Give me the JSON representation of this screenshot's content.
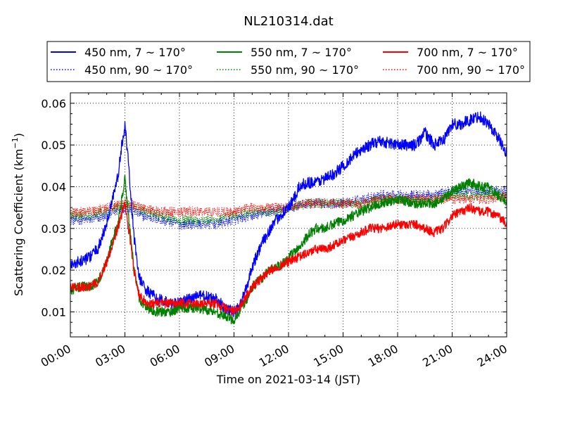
{
  "chart_data": {
    "type": "line",
    "title": "NL210314.dat",
    "xlabel": "Time on 2021-03-14 (JST)",
    "ylabel_main": "Scattering Coefficient (km",
    "ylabel_exp": "−1",
    "ylabel_close": ")",
    "xlim": [
      0,
      24
    ],
    "ylim": [
      0.004,
      0.0625
    ],
    "x_unit": "hours since 00:00 JST",
    "x_ticks": [
      0,
      3,
      6,
      9,
      12,
      15,
      18,
      21,
      24
    ],
    "x_tick_labels": [
      "00:00",
      "03:00",
      "06:00",
      "09:00",
      "12:00",
      "15:00",
      "18:00",
      "21:00",
      "24:00"
    ],
    "y_ticks": [
      0.01,
      0.02,
      0.03,
      0.04,
      0.05,
      0.06
    ],
    "y_tick_labels": [
      "0.01",
      "0.02",
      "0.03",
      "0.04",
      "0.05",
      "0.06"
    ],
    "grid": true,
    "legend_placement": "top, outside plot, 3 columns",
    "series": [
      {
        "name": "450 nm, 7 ~ 170°",
        "color": "#0000ff",
        "style": "solid",
        "noise": 0.0014,
        "x": [
          0,
          0.5,
          1,
          1.5,
          2,
          2.3,
          2.6,
          2.8,
          3.0,
          3.2,
          3.5,
          3.8,
          4.2,
          4.8,
          5.5,
          6,
          7,
          8,
          8.5,
          9,
          9.3,
          9.7,
          10,
          10.5,
          11,
          11.5,
          12,
          12.3,
          12.6,
          13,
          13.5,
          14,
          14.5,
          15,
          15.5,
          16,
          17,
          18,
          18.5,
          19,
          19.5,
          20,
          20.5,
          21,
          21.5,
          22,
          22.5,
          23,
          23.5,
          24
        ],
        "y": [
          0.021,
          0.022,
          0.023,
          0.025,
          0.031,
          0.037,
          0.042,
          0.049,
          0.055,
          0.045,
          0.028,
          0.018,
          0.015,
          0.013,
          0.012,
          0.012,
          0.014,
          0.013,
          0.011,
          0.01,
          0.011,
          0.016,
          0.021,
          0.026,
          0.03,
          0.033,
          0.035,
          0.037,
          0.04,
          0.041,
          0.041,
          0.042,
          0.043,
          0.045,
          0.047,
          0.049,
          0.051,
          0.05,
          0.05,
          0.05,
          0.053,
          0.05,
          0.051,
          0.055,
          0.055,
          0.056,
          0.057,
          0.055,
          0.052,
          0.048
        ]
      },
      {
        "name": "450 nm, 90 ~ 170°",
        "color": "#0000ff",
        "style": "dotted",
        "noise": 0.0012,
        "x": [
          0,
          1,
          2,
          3,
          4,
          5,
          6,
          7,
          8,
          9,
          10,
          11,
          12,
          13,
          14,
          15,
          16,
          17,
          18,
          19,
          20,
          21,
          22,
          23,
          24
        ],
        "y": [
          0.032,
          0.032,
          0.033,
          0.035,
          0.033,
          0.032,
          0.031,
          0.031,
          0.031,
          0.032,
          0.033,
          0.034,
          0.035,
          0.036,
          0.036,
          0.036,
          0.037,
          0.038,
          0.038,
          0.038,
          0.038,
          0.039,
          0.039,
          0.039,
          0.039
        ]
      },
      {
        "name": "550 nm, 7 ~ 170°",
        "color": "#008000",
        "style": "solid",
        "noise": 0.0012,
        "x": [
          0,
          0.5,
          1,
          1.5,
          2,
          2.3,
          2.6,
          2.8,
          3.0,
          3.2,
          3.5,
          3.8,
          4.2,
          4.8,
          5.5,
          6,
          7,
          8,
          8.5,
          9,
          9.3,
          9.7,
          10,
          10.5,
          11,
          11.5,
          12,
          12.5,
          13,
          13.5,
          14,
          14.5,
          15,
          15.5,
          16,
          17,
          18,
          19,
          20,
          20.5,
          21,
          21.5,
          22,
          22.5,
          23,
          23.5,
          24
        ],
        "y": [
          0.015,
          0.016,
          0.016,
          0.017,
          0.022,
          0.027,
          0.031,
          0.036,
          0.042,
          0.033,
          0.02,
          0.013,
          0.011,
          0.01,
          0.01,
          0.011,
          0.011,
          0.01,
          0.009,
          0.008,
          0.01,
          0.013,
          0.016,
          0.018,
          0.02,
          0.021,
          0.023,
          0.025,
          0.028,
          0.03,
          0.03,
          0.031,
          0.032,
          0.033,
          0.034,
          0.036,
          0.037,
          0.036,
          0.036,
          0.037,
          0.039,
          0.04,
          0.041,
          0.04,
          0.04,
          0.038,
          0.036
        ]
      },
      {
        "name": "550 nm, 90 ~ 170°",
        "color": "#008000",
        "style": "dotted",
        "noise": 0.0012,
        "x": [
          0,
          1,
          2,
          3,
          4,
          5,
          6,
          7,
          8,
          9,
          10,
          11,
          12,
          13,
          14,
          15,
          16,
          17,
          18,
          19,
          20,
          21,
          22,
          23,
          24
        ],
        "y": [
          0.033,
          0.033,
          0.034,
          0.036,
          0.034,
          0.033,
          0.032,
          0.032,
          0.032,
          0.033,
          0.034,
          0.034,
          0.035,
          0.036,
          0.036,
          0.036,
          0.036,
          0.037,
          0.037,
          0.037,
          0.037,
          0.038,
          0.038,
          0.038,
          0.038
        ]
      },
      {
        "name": "700 nm, 7 ~ 170°",
        "color": "#ff0000",
        "style": "solid",
        "noise": 0.0011,
        "x": [
          0,
          0.5,
          1,
          1.5,
          2,
          2.3,
          2.6,
          2.8,
          3.0,
          3.2,
          3.5,
          3.8,
          4.2,
          4.8,
          5.5,
          6,
          7,
          8,
          8.5,
          9,
          9.3,
          9.7,
          10,
          10.5,
          11,
          11.5,
          12,
          12.5,
          13,
          13.5,
          14,
          14.5,
          15,
          15.5,
          16,
          16.5,
          17,
          18,
          19,
          19.5,
          20,
          20.5,
          21,
          21.5,
          22,
          22.5,
          23,
          23.5,
          24
        ],
        "y": [
          0.016,
          0.016,
          0.016,
          0.017,
          0.022,
          0.026,
          0.03,
          0.033,
          0.036,
          0.03,
          0.02,
          0.014,
          0.012,
          0.012,
          0.012,
          0.012,
          0.012,
          0.012,
          0.011,
          0.01,
          0.011,
          0.014,
          0.016,
          0.018,
          0.02,
          0.021,
          0.022,
          0.023,
          0.024,
          0.025,
          0.025,
          0.026,
          0.027,
          0.028,
          0.029,
          0.03,
          0.03,
          0.031,
          0.031,
          0.03,
          0.029,
          0.03,
          0.033,
          0.034,
          0.035,
          0.034,
          0.034,
          0.033,
          0.031
        ]
      },
      {
        "name": "700 nm, 90 ~ 170°",
        "color": "#ff0000",
        "style": "dotted",
        "noise": 0.0012,
        "x": [
          0,
          1,
          2,
          3,
          4,
          5,
          6,
          7,
          8,
          9,
          10,
          11,
          12,
          13,
          14,
          15,
          16,
          17,
          18,
          19,
          20,
          21,
          22,
          23,
          24
        ],
        "y": [
          0.034,
          0.034,
          0.035,
          0.036,
          0.035,
          0.034,
          0.034,
          0.034,
          0.034,
          0.034,
          0.035,
          0.035,
          0.035,
          0.036,
          0.036,
          0.036,
          0.036,
          0.037,
          0.037,
          0.037,
          0.037,
          0.037,
          0.037,
          0.037,
          0.038
        ]
      }
    ]
  }
}
